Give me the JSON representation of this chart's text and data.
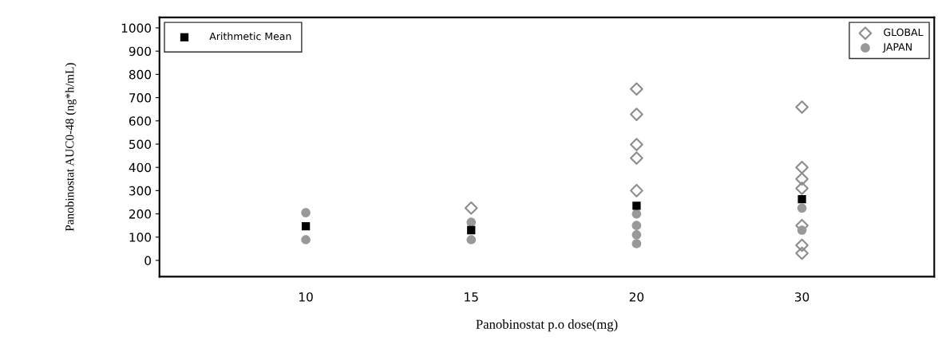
{
  "chart_data": {
    "type": "scatter",
    "xlabel": "Panobinostat p.o dose(mg)",
    "ylabel": "Panobinostat AUC0-48 (ng*h/mL)",
    "categories": [
      "10",
      "15",
      "20",
      "30"
    ],
    "ylim": [
      -70,
      1045
    ],
    "yticks": [
      0,
      100,
      200,
      300,
      400,
      500,
      600,
      700,
      800,
      900,
      1000
    ],
    "grid": false,
    "legend": "top",
    "series": [
      {
        "name": "GLOBAL",
        "color": "#8c8c8c",
        "marker": "diamond",
        "x": [
          "15",
          "20",
          "20",
          "20",
          "20",
          "20",
          "30",
          "30",
          "30",
          "30",
          "30",
          "30",
          "30"
        ],
        "values": [
          225,
          737,
          628,
          498,
          440,
          300,
          659,
          400,
          350,
          310,
          150,
          65,
          31
        ]
      },
      {
        "name": "JAPAN",
        "color": "#999999",
        "marker": "circle",
        "x": [
          "10",
          "10",
          "15",
          "15",
          "20",
          "20",
          "20",
          "20",
          "30",
          "30"
        ],
        "values": [
          205,
          89,
          164,
          89,
          200,
          150,
          110,
          72,
          225,
          130
        ]
      },
      {
        "name": "Arithmetic Mean",
        "color": "#000000",
        "marker": "square",
        "x": [
          "10",
          "15",
          "20",
          "30"
        ],
        "values": [
          147,
          130,
          235,
          263
        ]
      }
    ]
  }
}
